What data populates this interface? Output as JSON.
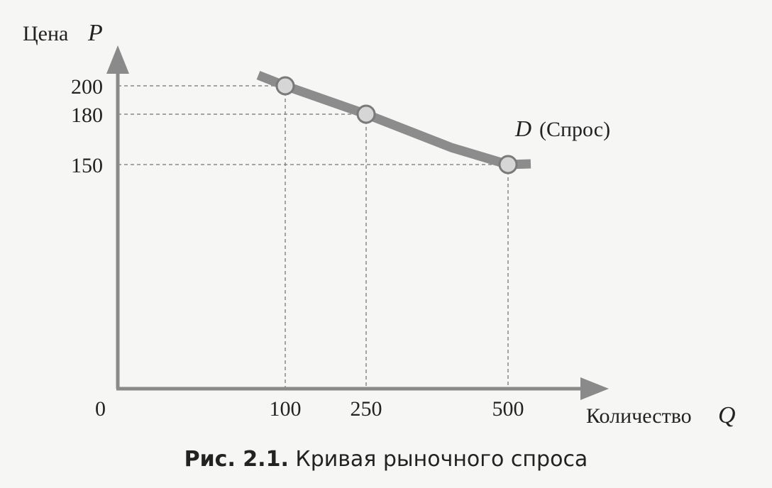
{
  "figure": {
    "caption_label": "Рис. 2.1.",
    "caption_text": "Кривая рыночного спроса",
    "curve_label_letter": "D",
    "curve_label_text": "(Спрос)"
  },
  "chart_data": {
    "type": "line",
    "title": "",
    "xlabel": "Количество",
    "xsymbol": "Q",
    "ylabel": "Цена",
    "ysymbol": "P",
    "origin_label": "0",
    "x_ticks": [
      100,
      250,
      500
    ],
    "y_ticks": [
      200,
      180,
      150
    ],
    "points": [
      {
        "x": 100,
        "y": 200
      },
      {
        "x": 250,
        "y": 180
      },
      {
        "x": 500,
        "y": 150
      }
    ],
    "series": [
      {
        "name": "D (Спрос)",
        "values": [
          200,
          180,
          150
        ]
      }
    ],
    "grid": "dashed guides to axes",
    "colors": {
      "axis": "#8a8a8a",
      "curve": "#8c8c8c",
      "marker": "#d6d6d6",
      "guide": "#888888"
    }
  }
}
